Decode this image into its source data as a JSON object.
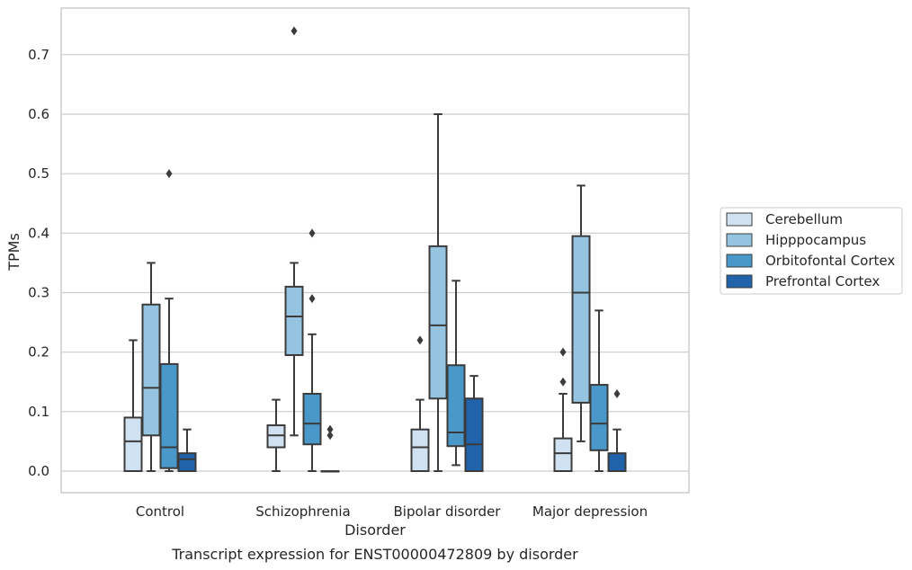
{
  "caption": "Transcript expression for ENST00000472809 by disorder",
  "chart_data": {
    "type": "box",
    "xlabel": "Disorder",
    "ylabel": "TPMs",
    "ylim": [
      -0.035,
      0.775
    ],
    "yticks": [
      0.0,
      0.1,
      0.2,
      0.3,
      0.4,
      0.5,
      0.6,
      0.7
    ],
    "ytick_labels": [
      "0.0",
      "0.1",
      "0.2",
      "0.3",
      "0.4",
      "0.5",
      "0.6",
      "0.7"
    ],
    "grid": "horizontal",
    "legend_position": "right",
    "categories": [
      "Control",
      "Schizophrenia",
      "Bipolar disorder",
      "Major depression"
    ],
    "series": [
      {
        "name": "Cerebellum",
        "color": "#d0e1f2",
        "boxes": [
          {
            "whislo": 0.0,
            "q1": 0.0,
            "med": 0.05,
            "q3": 0.09,
            "whishi": 0.22,
            "fliers": []
          },
          {
            "whislo": 0.0,
            "q1": 0.04,
            "med": 0.06,
            "q3": 0.077,
            "whishi": 0.12,
            "fliers": []
          },
          {
            "whislo": 0.0,
            "q1": 0.0,
            "med": 0.04,
            "q3": 0.07,
            "whishi": 0.12,
            "fliers": [
              0.22
            ]
          },
          {
            "whislo": 0.0,
            "q1": 0.0,
            "med": 0.03,
            "q3": 0.055,
            "whishi": 0.13,
            "fliers": [
              0.15,
              0.2
            ]
          }
        ]
      },
      {
        "name": "Hipppocampus",
        "color": "#94c4df",
        "boxes": [
          {
            "whislo": 0.0,
            "q1": 0.06,
            "med": 0.14,
            "q3": 0.28,
            "whishi": 0.35,
            "fliers": []
          },
          {
            "whislo": 0.06,
            "q1": 0.195,
            "med": 0.26,
            "q3": 0.31,
            "whishi": 0.35,
            "fliers": [
              0.74
            ]
          },
          {
            "whislo": 0.0,
            "q1": 0.122,
            "med": 0.245,
            "q3": 0.378,
            "whishi": 0.6,
            "fliers": []
          },
          {
            "whislo": 0.05,
            "q1": 0.115,
            "med": 0.3,
            "q3": 0.395,
            "whishi": 0.48,
            "fliers": []
          }
        ]
      },
      {
        "name": "Orbitofontal Cortex",
        "color": "#4a98c9",
        "boxes": [
          {
            "whislo": 0.0,
            "q1": 0.005,
            "med": 0.04,
            "q3": 0.18,
            "whishi": 0.29,
            "fliers": [
              0.5
            ]
          },
          {
            "whislo": 0.0,
            "q1": 0.045,
            "med": 0.08,
            "q3": 0.13,
            "whishi": 0.23,
            "fliers": [
              0.29,
              0.4
            ]
          },
          {
            "whislo": 0.01,
            "q1": 0.042,
            "med": 0.065,
            "q3": 0.178,
            "whishi": 0.32,
            "fliers": []
          },
          {
            "whislo": 0.0,
            "q1": 0.035,
            "med": 0.08,
            "q3": 0.145,
            "whishi": 0.27,
            "fliers": []
          }
        ]
      },
      {
        "name": "Prefrontal Cortex",
        "color": "#2163aa",
        "boxes": [
          {
            "whislo": 0.0,
            "q1": 0.0,
            "med": 0.02,
            "q3": 0.03,
            "whishi": 0.07,
            "fliers": []
          },
          {
            "whislo": 0.0,
            "q1": 0.0,
            "med": 0.0,
            "q3": 0.0,
            "whishi": 0.0,
            "fliers": [
              0.06,
              0.07
            ]
          },
          {
            "whislo": 0.0,
            "q1": 0.0,
            "med": 0.045,
            "q3": 0.122,
            "whishi": 0.16,
            "fliers": []
          },
          {
            "whislo": 0.0,
            "q1": 0.0,
            "med": 0.0,
            "q3": 0.03,
            "whishi": 0.07,
            "fliers": [
              0.13
            ]
          }
        ]
      }
    ]
  }
}
